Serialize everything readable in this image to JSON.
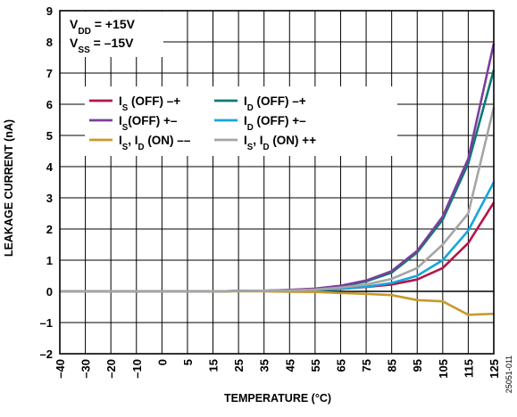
{
  "figure_id": "25051-011",
  "chart_data": {
    "type": "line",
    "xlabel": "TEMPERATURE (°C)",
    "ylabel": "LEAKAGE CURRENT (nA)",
    "x": [
      -40,
      -30,
      -20,
      -10,
      0,
      5,
      15,
      25,
      35,
      45,
      55,
      65,
      75,
      85,
      95,
      105,
      115,
      125
    ],
    "x_ticks": [
      "–40",
      "–30",
      "–20",
      "–10",
      "0",
      "5",
      "15",
      "25",
      "35",
      "45",
      "55",
      "65",
      "75",
      "85",
      "95",
      "105",
      "115",
      "125"
    ],
    "y_ticks": [
      "–2",
      "–1",
      "0",
      "1",
      "2",
      "3",
      "4",
      "5",
      "6",
      "7",
      "8",
      "9"
    ],
    "ylim": [
      -2,
      9
    ],
    "grid": true,
    "supply_labels": [
      {
        "main": "V",
        "sub": "DD",
        "rest": " = +15V"
      },
      {
        "main": "V",
        "sub": "SS",
        "rest": " = –15V"
      }
    ],
    "series": [
      {
        "name": "I_S (OFF) –+",
        "legend": {
          "a": "I",
          "a_sub": "S",
          "b": " (OFF) –+"
        },
        "color": "#b5154d",
        "values": [
          0,
          0,
          0,
          0,
          0,
          0,
          0,
          0.01,
          0.01,
          0.02,
          0.04,
          0.08,
          0.14,
          0.22,
          0.38,
          0.75,
          1.55,
          2.85
        ]
      },
      {
        "name": "I_D (OFF) –+",
        "legend": {
          "a": "I",
          "a_sub": "D",
          "b": " (OFF) –+"
        },
        "color": "#0a7a72",
        "values": [
          0,
          0,
          0,
          0,
          0,
          0,
          0,
          0.01,
          0.02,
          0.04,
          0.08,
          0.16,
          0.32,
          0.6,
          1.25,
          2.3,
          4.1,
          7.1
        ]
      },
      {
        "name": "I_S(OFF) +–",
        "legend": {
          "a": "I",
          "a_sub": "S",
          "b": "(OFF) +–"
        },
        "color": "#7b3f9c",
        "values": [
          0,
          0,
          0,
          0,
          0,
          0,
          0,
          0.01,
          0.02,
          0.05,
          0.09,
          0.18,
          0.35,
          0.65,
          1.3,
          2.4,
          4.25,
          7.95
        ]
      },
      {
        "name": "I_D (OFF) +–",
        "legend": {
          "a": "I",
          "a_sub": "D",
          "b": " (OFF) +–"
        },
        "color": "#13a7dc",
        "values": [
          0,
          0,
          0,
          0,
          0,
          0,
          0,
          0.01,
          0.01,
          0.02,
          0.04,
          0.08,
          0.15,
          0.27,
          0.5,
          1.0,
          1.95,
          3.5
        ]
      },
      {
        "name": "I_S, I_D (ON) ––",
        "legend": {
          "a": "I",
          "a_sub": "S",
          "b": ", ",
          "c": "I",
          "c_sub": "D",
          "d": " (ON) ––"
        },
        "color": "#c79a2e",
        "values": [
          0,
          0,
          0,
          0,
          0,
          0,
          0,
          0,
          0,
          -0.01,
          -0.02,
          -0.05,
          -0.08,
          -0.12,
          -0.28,
          -0.32,
          -0.75,
          -0.72
        ]
      },
      {
        "name": "I_S, I_D (ON) ++",
        "legend": {
          "a": "I",
          "a_sub": "S",
          "b": ", ",
          "c": "I",
          "c_sub": "D",
          "d": " (ON) ++"
        },
        "color": "#a5a5a5",
        "values": [
          0,
          0,
          0,
          0,
          0,
          0,
          0,
          0.01,
          0.02,
          0.03,
          0.06,
          0.12,
          0.22,
          0.4,
          0.75,
          1.5,
          2.5,
          5.9
        ]
      }
    ]
  }
}
